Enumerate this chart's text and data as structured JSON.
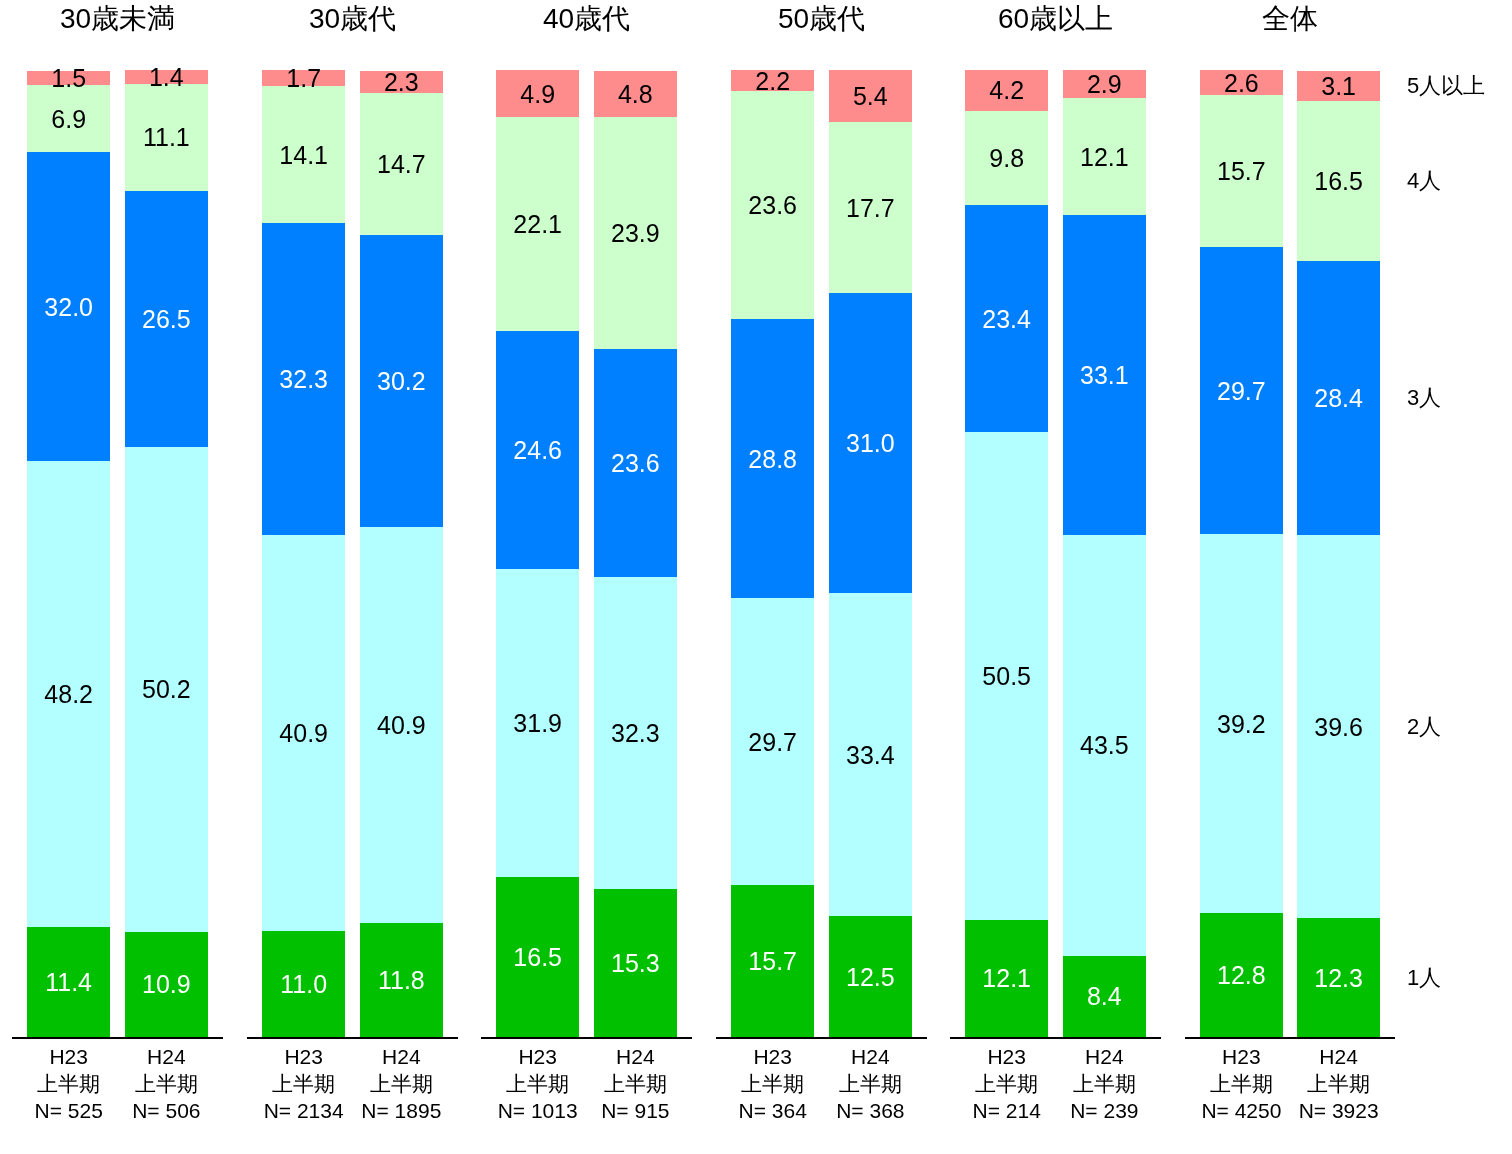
{
  "chart_data": [
    {
      "type": "bar",
      "stacked": true,
      "tick_labels": "x",
      "title": "30歳未満",
      "categories": [
        "H23\n上半期\nN= 525",
        "H24\n上半期\nN= 506"
      ],
      "series": [
        {
          "color": "#00c000",
          "values": [
            11.4,
            10.9
          ],
          "value_labels": [
            "11.4",
            "10.9"
          ]
        },
        {
          "color": "#b3ffff",
          "values": [
            48.2,
            50.2
          ],
          "value_labels": [
            "48.2",
            "50.2"
          ]
        },
        {
          "color": "#0080ff",
          "values": [
            32.0,
            26.5
          ],
          "value_labels": [
            "32.0",
            "26.5"
          ]
        },
        {
          "color": "#ccffcc",
          "values": [
            6.9,
            11.1
          ],
          "value_labels": [
            "6.9",
            "11.1"
          ]
        },
        {
          "color": "#ff8c8c",
          "values": [
            1.5,
            1.4
          ],
          "value_labels": [
            "1.5",
            "1.4"
          ]
        }
      ]
    },
    {
      "type": "bar",
      "stacked": true,
      "tick_labels": "x",
      "title": "30歳代",
      "categories": [
        "H23\n上半期\nN= 2134",
        "H24\n上半期\nN= 1895"
      ],
      "series": [
        {
          "color": "#00c000",
          "values": [
            11.0,
            11.8
          ],
          "value_labels": [
            "11.0",
            "11.8"
          ]
        },
        {
          "color": "#b3ffff",
          "values": [
            40.9,
            40.9
          ],
          "value_labels": [
            "40.9",
            "40.9"
          ]
        },
        {
          "color": "#0080ff",
          "values": [
            32.3,
            30.2
          ],
          "value_labels": [
            "32.3",
            "30.2"
          ]
        },
        {
          "color": "#ccffcc",
          "values": [
            14.1,
            14.7
          ],
          "value_labels": [
            "14.1",
            "14.7"
          ]
        },
        {
          "color": "#ff8c8c",
          "values": [
            1.7,
            2.3
          ],
          "value_labels": [
            "1.7",
            "2.3"
          ]
        }
      ]
    },
    {
      "type": "bar",
      "stacked": true,
      "tick_labels": "x",
      "title": "40歳代",
      "categories": [
        "H23\n上半期\nN= 1013",
        "H24\n上半期\nN= 915"
      ],
      "series": [
        {
          "color": "#00c000",
          "values": [
            16.5,
            15.3
          ],
          "value_labels": [
            "16.5",
            "15.3"
          ]
        },
        {
          "color": "#b3ffff",
          "values": [
            31.9,
            32.3
          ],
          "value_labels": [
            "31.9",
            "32.3"
          ]
        },
        {
          "color": "#0080ff",
          "values": [
            24.6,
            23.6
          ],
          "value_labels": [
            "24.6",
            "23.6"
          ]
        },
        {
          "color": "#ccffcc",
          "values": [
            22.1,
            23.9
          ],
          "value_labels": [
            "22.1",
            "23.9"
          ]
        },
        {
          "color": "#ff8c8c",
          "values": [
            4.9,
            4.8
          ],
          "value_labels": [
            "4.9",
            "4.8"
          ]
        }
      ]
    },
    {
      "type": "bar",
      "stacked": true,
      "tick_labels": "x",
      "title": "50歳代",
      "categories": [
        "H23\n上半期\nN= 364",
        "H24\n上半期\nN= 368"
      ],
      "series": [
        {
          "color": "#00c000",
          "values": [
            15.7,
            12.5
          ],
          "value_labels": [
            "15.7",
            "12.5"
          ]
        },
        {
          "color": "#b3ffff",
          "values": [
            29.7,
            33.4
          ],
          "value_labels": [
            "29.7",
            "33.4"
          ]
        },
        {
          "color": "#0080ff",
          "values": [
            28.8,
            31.0
          ],
          "value_labels": [
            "28.8",
            "31.0"
          ]
        },
        {
          "color": "#ccffcc",
          "values": [
            23.6,
            17.7
          ],
          "value_labels": [
            "23.6",
            "17.7"
          ]
        },
        {
          "color": "#ff8c8c",
          "values": [
            2.2,
            5.4
          ],
          "value_labels": [
            "2.2",
            "5.4"
          ]
        }
      ]
    },
    {
      "type": "bar",
      "stacked": true,
      "tick_labels": "x",
      "title": "60歳以上",
      "categories": [
        "H23\n上半期\nN= 214",
        "H24\n上半期\nN= 239"
      ],
      "series": [
        {
          "color": "#00c000",
          "values": [
            12.1,
            8.4
          ],
          "value_labels": [
            "12.1",
            "8.4"
          ]
        },
        {
          "color": "#b3ffff",
          "values": [
            50.5,
            43.5
          ],
          "value_labels": [
            "50.5",
            "43.5"
          ]
        },
        {
          "color": "#0080ff",
          "values": [
            23.4,
            33.1
          ],
          "value_labels": [
            "23.4",
            "33.1"
          ]
        },
        {
          "color": "#ccffcc",
          "values": [
            9.8,
            12.1
          ],
          "value_labels": [
            "9.8",
            "12.1"
          ]
        },
        {
          "color": "#ff8c8c",
          "values": [
            4.2,
            2.9
          ],
          "value_labels": [
            "4.2",
            "2.9"
          ]
        }
      ]
    },
    {
      "type": "bar",
      "stacked": true,
      "tick_labels": "x",
      "title": "全体",
      "categories": [
        "H23\n上半期\nN= 4250",
        "H24\n上半期\nN= 3923"
      ],
      "series": [
        {
          "name": "1人",
          "color": "#00c000",
          "values": [
            12.8,
            12.3
          ],
          "value_labels": [
            "12.8",
            "12.3"
          ]
        },
        {
          "name": "2人",
          "color": "#b3ffff",
          "values": [
            39.2,
            39.6
          ],
          "value_labels": [
            "39.2",
            "39.6"
          ]
        },
        {
          "name": "3人",
          "color": "#0080ff",
          "values": [
            29.7,
            28.4
          ],
          "value_labels": [
            "29.7",
            "28.4"
          ]
        },
        {
          "name": "4人",
          "color": "#ccffcc",
          "values": [
            15.7,
            16.5
          ],
          "value_labels": [
            "15.7",
            "16.5"
          ]
        },
        {
          "name": "5人以上",
          "color": "#ff8c8c",
          "values": [
            2.6,
            3.1
          ],
          "value_labels": [
            "2.6",
            "3.1"
          ]
        }
      ]
    }
  ]
}
